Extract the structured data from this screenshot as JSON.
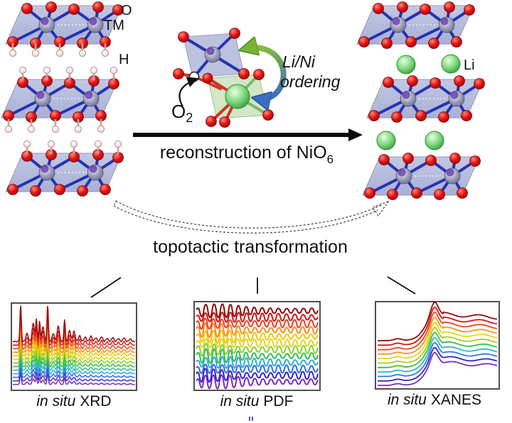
{
  "figure": {
    "atom_labels": {
      "oxygen": "O",
      "transition_metal": "TM",
      "hydrogen": "H",
      "lithium": "Li"
    },
    "o2_label": {
      "main": "O",
      "sub": "2"
    },
    "ordering_label": {
      "line1": "Li/Ni",
      "line2": "ordering"
    },
    "reaction_arrow": {
      "text_main": "reconstruction of NiO",
      "text_sub": "6"
    },
    "transformation_label": "topotactic transformation"
  },
  "plots": [
    {
      "id": "xrd",
      "type": "xrd",
      "label_italic": "in situ",
      "label_rest": "XRD",
      "colors": [
        "#7a2dbd",
        "#4530d2",
        "#2e6ede",
        "#2ea6de",
        "#2dbf93",
        "#3cbe3c",
        "#8ecd2d",
        "#d8d51d",
        "#f4c400",
        "#f58e1d",
        "#ee4722",
        "#d91d1d",
        "#9c0c0c"
      ]
    },
    {
      "id": "pdf",
      "type": "pdf",
      "label_italic": "in situ",
      "label_rest": "PDF",
      "colors": [
        "#7a2dbd",
        "#3423cf",
        "#2e6ede",
        "#2eafd6",
        "#2ebe4e",
        "#8ecd2d",
        "#dcd81d",
        "#f4c400",
        "#f58e1d",
        "#ee3e22",
        "#d31313",
        "#8d0a0a"
      ]
    },
    {
      "id": "xanes",
      "type": "xanes",
      "label_italic": "in situ",
      "label_rest": "XANES",
      "colors": [
        "#7a2dbd",
        "#3423cf",
        "#2e7ede",
        "#2eb6c6",
        "#3cbe3c",
        "#a6cd2d",
        "#eed800",
        "#f4961d",
        "#ee4022",
        "#d31313",
        "#8d0a0a"
      ]
    }
  ],
  "palette": {
    "oxygen_red": "#d81616",
    "tm_purple": "#5d2ca6",
    "slab_lavender": "#b7bddc",
    "lithium_green": "#66c966",
    "bond_blue": "#2432b2",
    "octahedron_green": "#cfe6c2",
    "swap_arrow_green": "#8dc63f",
    "swap_arrow_blue": "#3a6fc4",
    "hydrogen_pink": "#f3e4e4",
    "arrow_black": "#0a0a0a"
  }
}
